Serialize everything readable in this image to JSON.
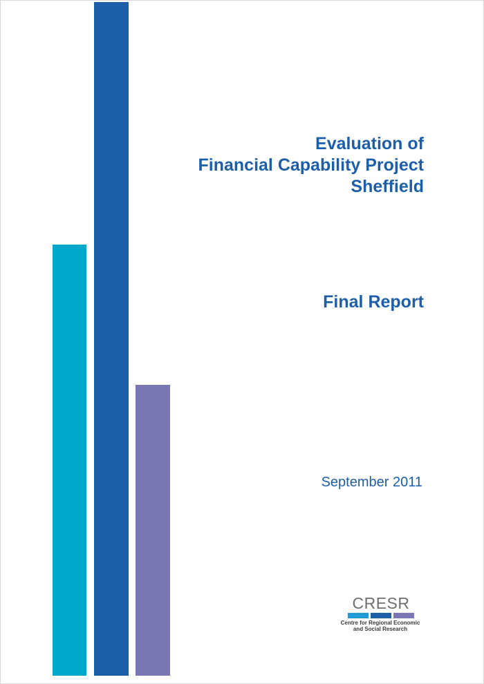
{
  "colors": {
    "bar_cyan": "#00a8cc",
    "bar_blue": "#1d5ea8",
    "bar_purple": "#7b76b4",
    "title_text": "#1d5ea8"
  },
  "cover": {
    "title_lines": [
      "Evaluation of",
      "Financial Capability Project",
      "Sheffield"
    ],
    "subtitle": "Final Report",
    "date": "September 2011"
  },
  "logo": {
    "wordmark": "CRESR",
    "tagline_lines": [
      "Centre for Regional Economic",
      "and Social Research"
    ]
  }
}
